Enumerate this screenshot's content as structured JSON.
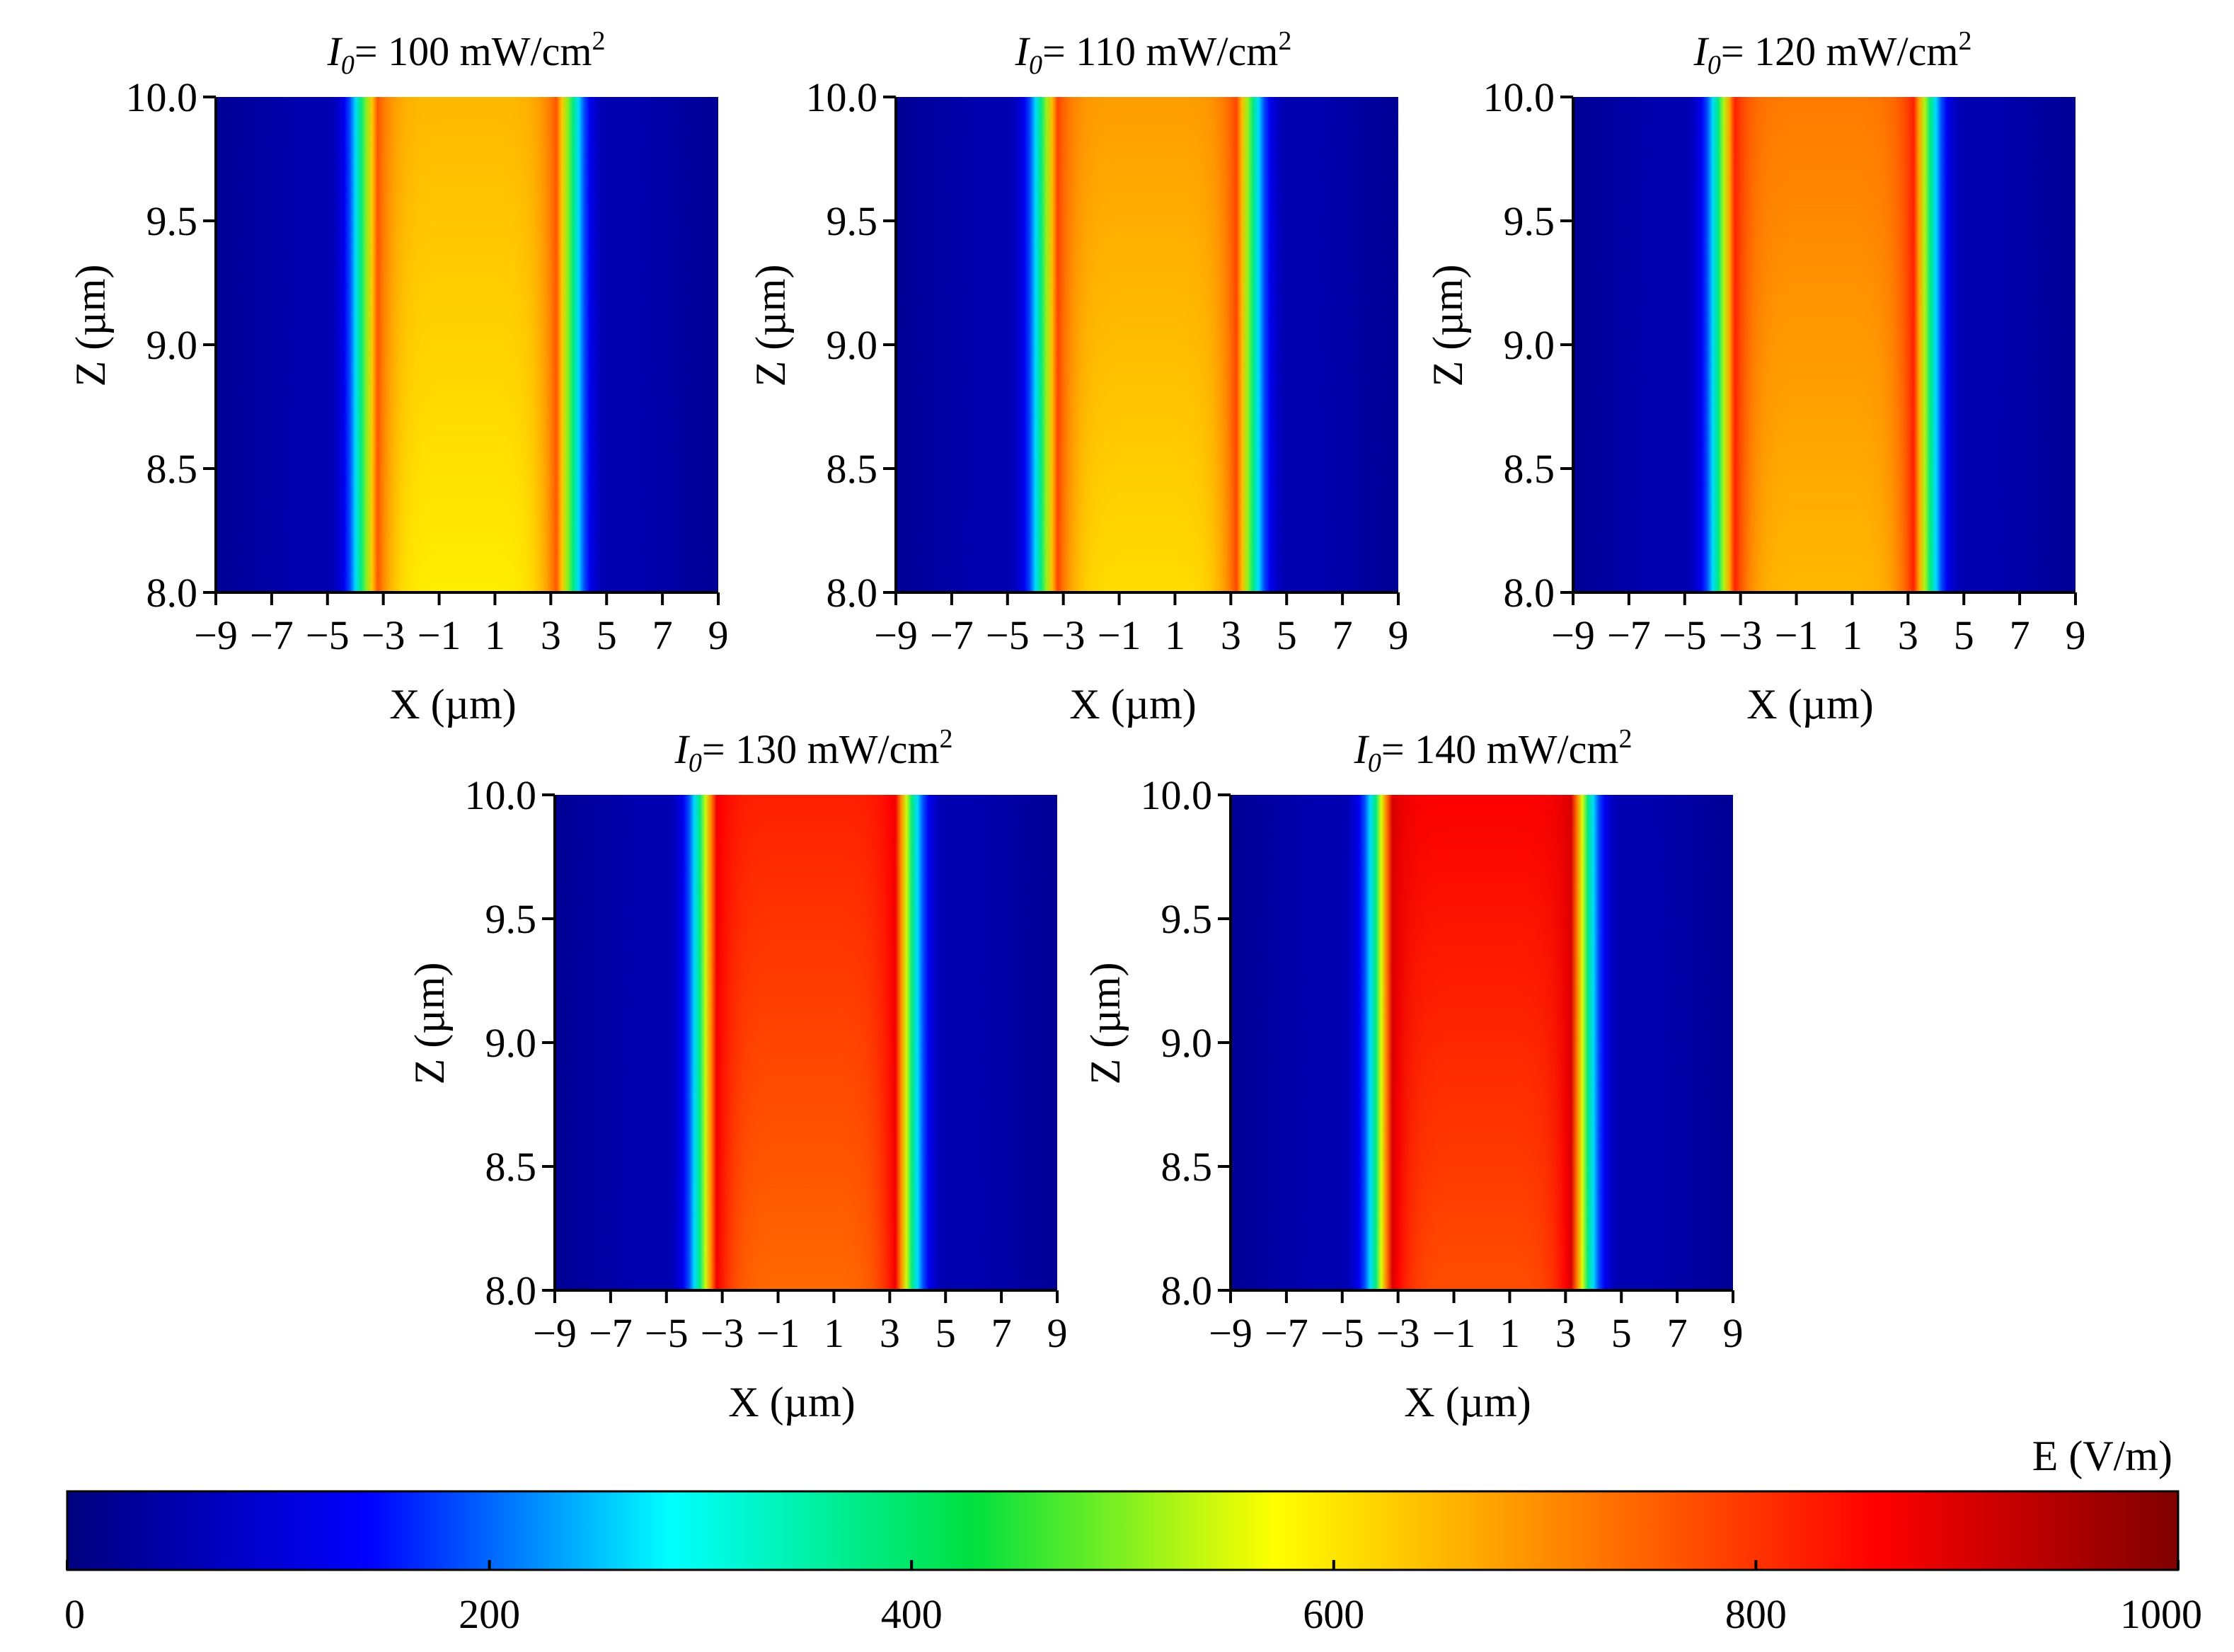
{
  "figure": {
    "colorbar": {
      "label": "E (V/m)",
      "min": 0,
      "max": 1000,
      "ticks": [
        "0",
        "200",
        "400",
        "600",
        "800",
        "1000"
      ],
      "colormap": [
        "#00007f",
        "#0000ff",
        "#00ffff",
        "#00e040",
        "#ffff00",
        "#ff8000",
        "#ff0000",
        "#7f0000"
      ]
    }
  },
  "chart_data": [
    {
      "type": "heatmap",
      "title_prefix": "I",
      "title_sub": "0",
      "title_value": "= 100 mW/cm",
      "title_sup": "2",
      "xlabel": "X (µm)",
      "ylabel": "Z (µm)",
      "xlim": [
        -9,
        9
      ],
      "ylim": [
        8.0,
        10.0
      ],
      "xticks": [
        "−9",
        "−7",
        "−5",
        "−3",
        "−1",
        "1",
        "3",
        "5",
        "7",
        "9"
      ],
      "yticks": [
        "8.0",
        "8.5",
        "9.0",
        "9.5",
        "10.0"
      ],
      "intensity_mW_cm2": 100,
      "beam_edge_um": 3.8,
      "e_edge_peak_V_m": 760,
      "e_center_top_V_m": 650,
      "e_center_bottom_V_m": 590
    },
    {
      "type": "heatmap",
      "title_prefix": "I",
      "title_sub": "0",
      "title_value": "= 110 mW/cm",
      "title_sup": "2",
      "xlabel": "X (µm)",
      "ylabel": "Z (µm)",
      "xlim": [
        -9,
        9
      ],
      "ylim": [
        8.0,
        10.0
      ],
      "xticks": [
        "−9",
        "−7",
        "−5",
        "−3",
        "−1",
        "1",
        "3",
        "5",
        "7",
        "9"
      ],
      "yticks": [
        "8.0",
        "8.5",
        "9.0",
        "9.5",
        "10.0"
      ],
      "intensity_mW_cm2": 110,
      "beam_edge_um": 3.8,
      "e_edge_peak_V_m": 780,
      "e_center_top_V_m": 680,
      "e_center_bottom_V_m": 610
    },
    {
      "type": "heatmap",
      "title_prefix": "I",
      "title_sub": "0",
      "title_value": "= 120 mW/cm",
      "title_sup": "2",
      "xlabel": "X (µm)",
      "ylabel": "Z (µm)",
      "xlim": [
        -9,
        9
      ],
      "ylim": [
        8.0,
        10.0
      ],
      "xticks": [
        "−9",
        "−7",
        "−5",
        "−3",
        "−1",
        "1",
        "3",
        "5",
        "7",
        "9"
      ],
      "yticks": [
        "8.0",
        "8.5",
        "9.0",
        "9.5",
        "10.0"
      ],
      "intensity_mW_cm2": 120,
      "beam_edge_um": 3.8,
      "e_edge_peak_V_m": 820,
      "e_center_top_V_m": 720,
      "e_center_bottom_V_m": 650
    },
    {
      "type": "heatmap",
      "title_prefix": "I",
      "title_sub": "0",
      "title_value": "= 130 mW/cm",
      "title_sup": "2",
      "xlabel": "X (µm)",
      "ylabel": "Z (µm)",
      "xlim": [
        -9,
        9
      ],
      "ylim": [
        8.0,
        10.0
      ],
      "xticks": [
        "−9",
        "−7",
        "−5",
        "−3",
        "−1",
        "1",
        "3",
        "5",
        "7",
        "9"
      ],
      "yticks": [
        "8.0",
        "8.5",
        "9.0",
        "9.5",
        "10.0"
      ],
      "intensity_mW_cm2": 130,
      "beam_edge_um": 3.8,
      "e_edge_peak_V_m": 870,
      "e_center_top_V_m": 820,
      "e_center_bottom_V_m": 740
    },
    {
      "type": "heatmap",
      "title_prefix": "I",
      "title_sub": "0",
      "title_value": "= 140 mW/cm",
      "title_sup": "2",
      "xlabel": "X (µm)",
      "ylabel": "Z (µm)",
      "xlim": [
        -9,
        9
      ],
      "ylim": [
        8.0,
        10.0
      ],
      "xticks": [
        "−9",
        "−7",
        "−5",
        "−3",
        "−1",
        "1",
        "3",
        "5",
        "7",
        "9"
      ],
      "yticks": [
        "8.0",
        "8.5",
        "9.0",
        "9.5",
        "10.0"
      ],
      "intensity_mW_cm2": 140,
      "beam_edge_um": 3.8,
      "e_edge_peak_V_m": 900,
      "e_center_top_V_m": 860,
      "e_center_bottom_V_m": 770
    }
  ]
}
